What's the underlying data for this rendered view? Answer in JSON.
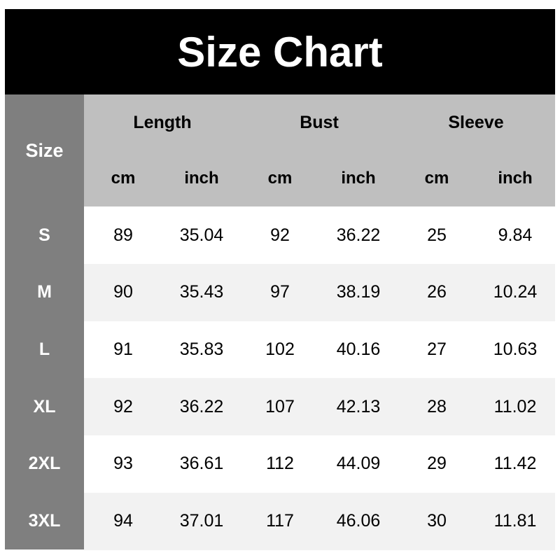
{
  "title": "Size Chart",
  "table": {
    "size_header": "Size",
    "groups": [
      "Length",
      "Bust",
      "Sleeve"
    ],
    "units": [
      "cm",
      "inch",
      "cm",
      "inch",
      "cm",
      "inch"
    ],
    "rows": [
      {
        "size": "S",
        "values": [
          "89",
          "35.04",
          "92",
          "36.22",
          "25",
          "9.84"
        ]
      },
      {
        "size": "M",
        "values": [
          "90",
          "35.43",
          "97",
          "38.19",
          "26",
          "10.24"
        ]
      },
      {
        "size": "L",
        "values": [
          "91",
          "35.83",
          "102",
          "40.16",
          "27",
          "10.63"
        ]
      },
      {
        "size": "XL",
        "values": [
          "92",
          "36.22",
          "107",
          "42.13",
          "28",
          "11.02"
        ]
      },
      {
        "size": "2XL",
        "values": [
          "93",
          "36.61",
          "112",
          "44.09",
          "29",
          "11.42"
        ]
      },
      {
        "size": "3XL",
        "values": [
          "94",
          "37.01",
          "117",
          "46.06",
          "30",
          "11.81"
        ]
      }
    ]
  },
  "colors": {
    "title_bg": "#000000",
    "size_col": "#7f7f7f",
    "header_bg": "#bfbfbf",
    "alt_row": "#f2f2f2"
  }
}
